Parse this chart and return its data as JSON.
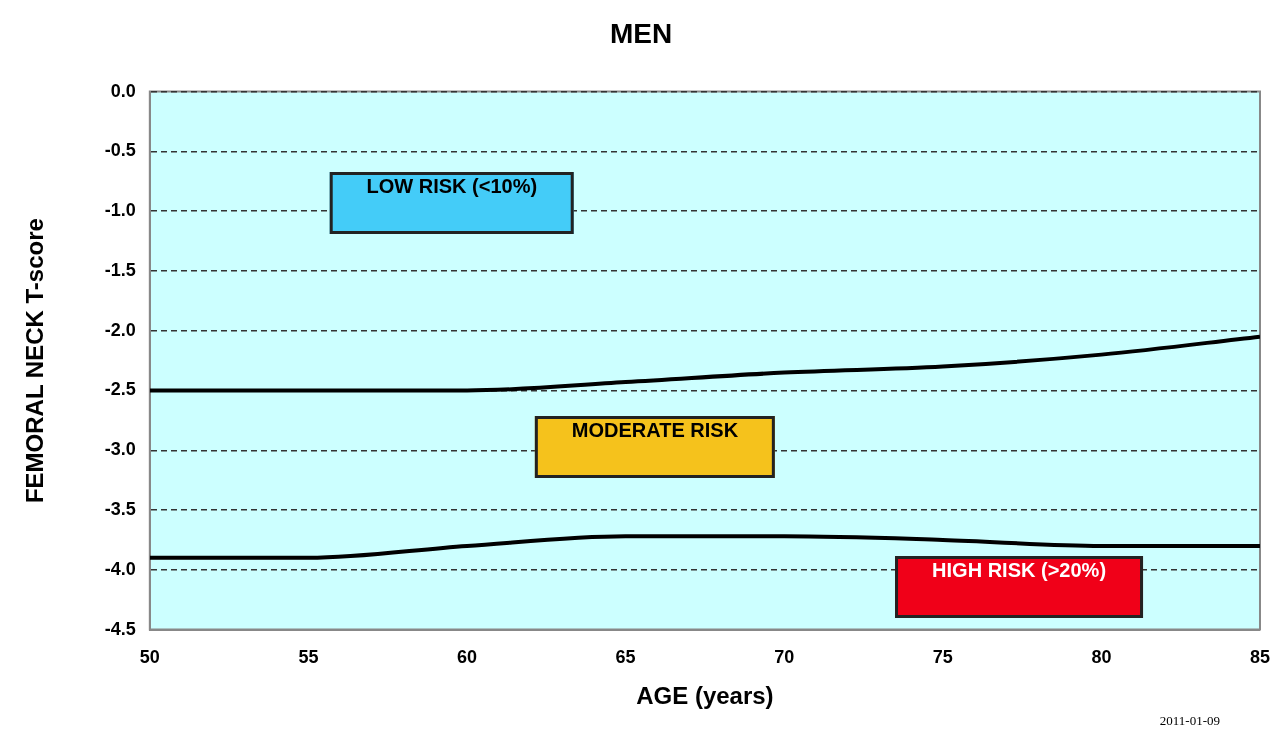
{
  "chart_data": {
    "type": "line",
    "title": "MEN",
    "xlabel": "AGE (years)",
    "ylabel": "FEMORAL NECK T-score",
    "x": [
      50,
      55,
      60,
      65,
      70,
      75,
      80,
      85
    ],
    "series": [
      {
        "color": "#000000",
        "values": [
          -2.5,
          -2.5,
          -2.5,
          -2.43,
          -2.35,
          -2.3,
          -2.2,
          -2.05
        ]
      },
      {
        "color": "#000000",
        "values": [
          -3.9,
          -3.9,
          -3.8,
          -3.72,
          -3.72,
          -3.75,
          -3.8,
          -3.8
        ]
      }
    ],
    "xlim": [
      50,
      85
    ],
    "xticks": [
      50,
      55,
      60,
      65,
      70,
      75,
      80,
      85
    ],
    "ylim": [
      -4.5,
      0
    ],
    "yticks": [
      {
        "value": -4.5,
        "label": "-4.5"
      },
      {
        "value": -4,
        "label": "-4.0"
      },
      -3.5,
      {
        "value": -3,
        "label": "-3.0"
      },
      -2.5,
      {
        "value": -2,
        "label": "-2.0"
      },
      -1.5,
      {
        "value": -1,
        "label": "-1.0"
      },
      -0.5,
      {
        "value": 0,
        "label": "0.0"
      }
    ],
    "grid": "y",
    "marker": "none",
    "line_style": "solid",
    "legend": false,
    "annotations": [
      "LOW RISK (<10%)",
      "MODERATE RISK",
      "HIGH RISK (>20%)",
      "2011-01-09"
    ]
  }
}
